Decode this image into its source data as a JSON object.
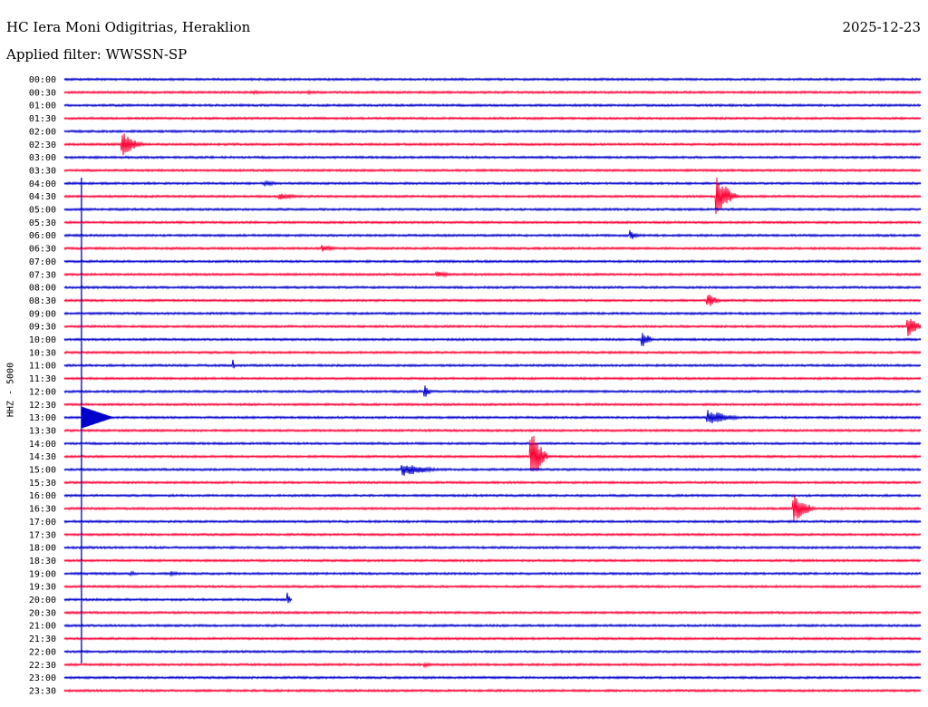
{
  "header": {
    "station": "HC Iera Moni Odigitrias, Heraklion",
    "date": "2025-12-23",
    "filter": "Applied filter: WWSSN-SP"
  },
  "colors": {
    "blue": "#0000cc",
    "red": "#ff0033"
  },
  "chart_data": {
    "type": "line",
    "ylabel": "HHZ - 5000",
    "rows": [
      "00:00",
      "00:30",
      "01:00",
      "01:30",
      "02:00",
      "02:30",
      "03:00",
      "03:30",
      "04:00",
      "04:30",
      "05:00",
      "05:30",
      "06:00",
      "06:30",
      "07:00",
      "07:30",
      "08:00",
      "08:30",
      "09:00",
      "09:30",
      "10:00",
      "10:30",
      "11:00",
      "11:30",
      "12:00",
      "12:30",
      "13:00",
      "13:30",
      "14:00",
      "14:30",
      "15:00",
      "15:30",
      "16:00",
      "16:30",
      "17:00",
      "17:30",
      "18:00",
      "18:30",
      "19:00",
      "19:30",
      "20:00",
      "20:30",
      "21:00",
      "21:30",
      "22:00",
      "22:30",
      "23:00",
      "23:30"
    ],
    "events": [
      {
        "row": 1,
        "minute": 6.5,
        "amp": 2,
        "dur": 2.0
      },
      {
        "row": 1,
        "minute": 8.5,
        "amp": 2,
        "dur": 1.0
      },
      {
        "row": 5,
        "minute": 2.0,
        "amp": 14,
        "dur": 1.0
      },
      {
        "row": 8,
        "minute": 7.0,
        "amp": 3,
        "dur": 1.0
      },
      {
        "row": 9,
        "minute": 7.5,
        "amp": 4,
        "dur": 1.2
      },
      {
        "row": 9,
        "minute": 22.8,
        "amp": 24,
        "dur": 1.0
      },
      {
        "row": 12,
        "minute": 19.8,
        "amp": 6,
        "dur": 0.5
      },
      {
        "row": 13,
        "minute": 9.0,
        "amp": 4,
        "dur": 1.0
      },
      {
        "row": 15,
        "minute": 13.0,
        "amp": 4,
        "dur": 1.0
      },
      {
        "row": 17,
        "minute": 22.5,
        "amp": 9,
        "dur": 0.7
      },
      {
        "row": 19,
        "minute": 29.5,
        "amp": 12,
        "dur": 0.8
      },
      {
        "row": 20,
        "minute": 20.2,
        "amp": 10,
        "dur": 0.6
      },
      {
        "row": 22,
        "minute": 5.9,
        "amp": 8,
        "dur": 0.1
      },
      {
        "row": 24,
        "minute": 12.6,
        "amp": 8,
        "dur": 0.4
      },
      {
        "row": 26,
        "minute": 22.5,
        "amp": 9,
        "dur": 1.6
      },
      {
        "row": 29,
        "minute": 16.3,
        "amp": 32,
        "dur": 0.8
      },
      {
        "row": 30,
        "minute": 11.8,
        "amp": 8,
        "dur": 1.8
      },
      {
        "row": 33,
        "minute": 25.5,
        "amp": 18,
        "dur": 1.0
      },
      {
        "row": 38,
        "minute": 2.3,
        "amp": 3,
        "dur": 0.5
      },
      {
        "row": 38,
        "minute": 3.7,
        "amp": 3,
        "dur": 0.8
      },
      {
        "row": 40,
        "minute": 7.8,
        "amp": 10,
        "dur": 0.2
      },
      {
        "row": 45,
        "minute": 12.6,
        "amp": 3,
        "dur": 0.5
      }
    ],
    "big_event": {
      "row": 26,
      "minute": 0.6,
      "amp": 150,
      "dur": 1.2
    }
  }
}
